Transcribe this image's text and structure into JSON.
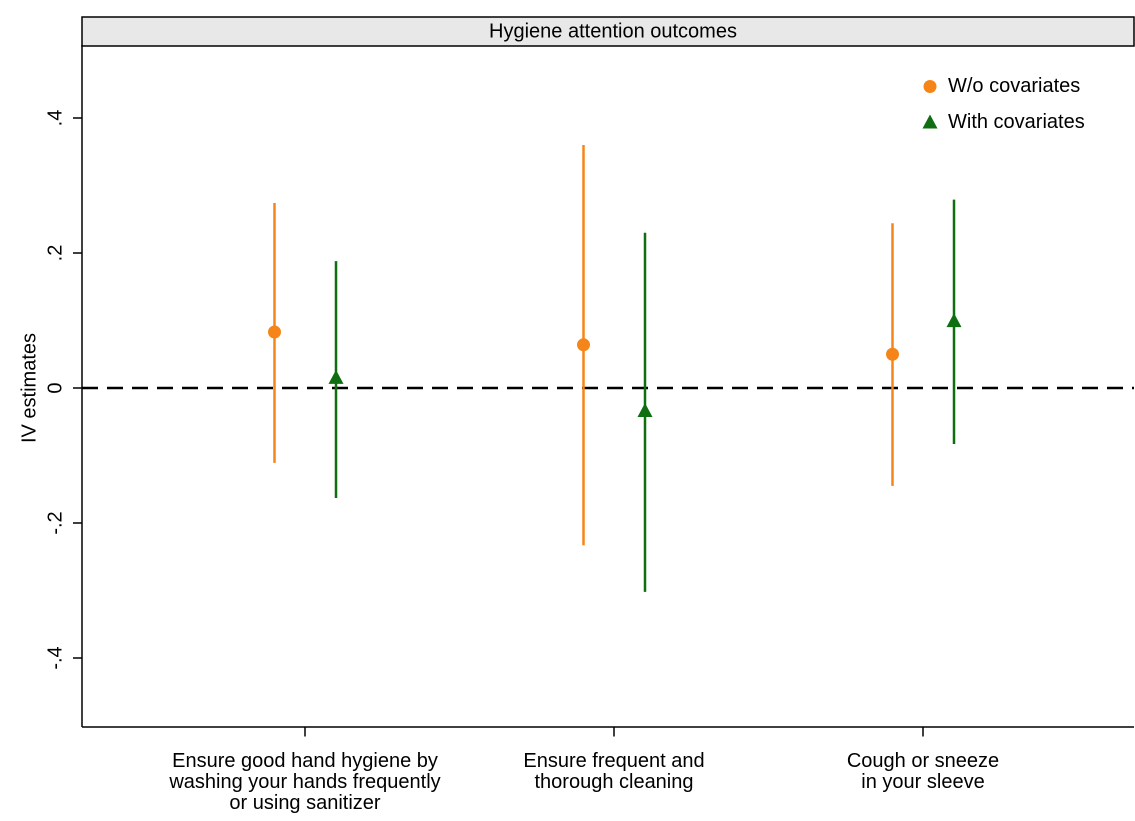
{
  "chart_data": {
    "type": "errorbar",
    "title": "Hygiene attention outcomes",
    "ylabel": "IV estimates",
    "categories": [
      [
        "Ensure good hand hygiene by",
        "washing your hands frequently",
        "or using sanitizer"
      ],
      [
        "Ensure frequent and",
        "thorough cleaning"
      ],
      [
        "Cough or sneeze",
        "in your sleeve"
      ]
    ],
    "series": [
      {
        "name": "W/o covariates",
        "color": "#f58518",
        "marker": "circle",
        "values": [
          0.083,
          0.064,
          0.05
        ],
        "lower": [
          -0.111,
          -0.233,
          -0.145
        ],
        "upper": [
          0.274,
          0.36,
          0.244
        ]
      },
      {
        "name": "With covariates",
        "color": "#0f6e0f",
        "marker": "triangle",
        "values": [
          0.015,
          -0.034,
          0.099
        ],
        "lower": [
          -0.163,
          -0.302,
          -0.083
        ],
        "upper": [
          0.188,
          0.23,
          0.279
        ]
      }
    ],
    "ylim": [
      -0.5,
      0.5
    ],
    "yticks": [
      {
        "value": -0.4,
        "label": "-.4"
      },
      {
        "value": -0.2,
        "label": "-.2"
      },
      0,
      {
        "value": 0.2,
        "label": ".2"
      },
      {
        "value": 0.4,
        "label": ".4"
      }
    ],
    "reference_line": 0,
    "legend": "top right"
  }
}
